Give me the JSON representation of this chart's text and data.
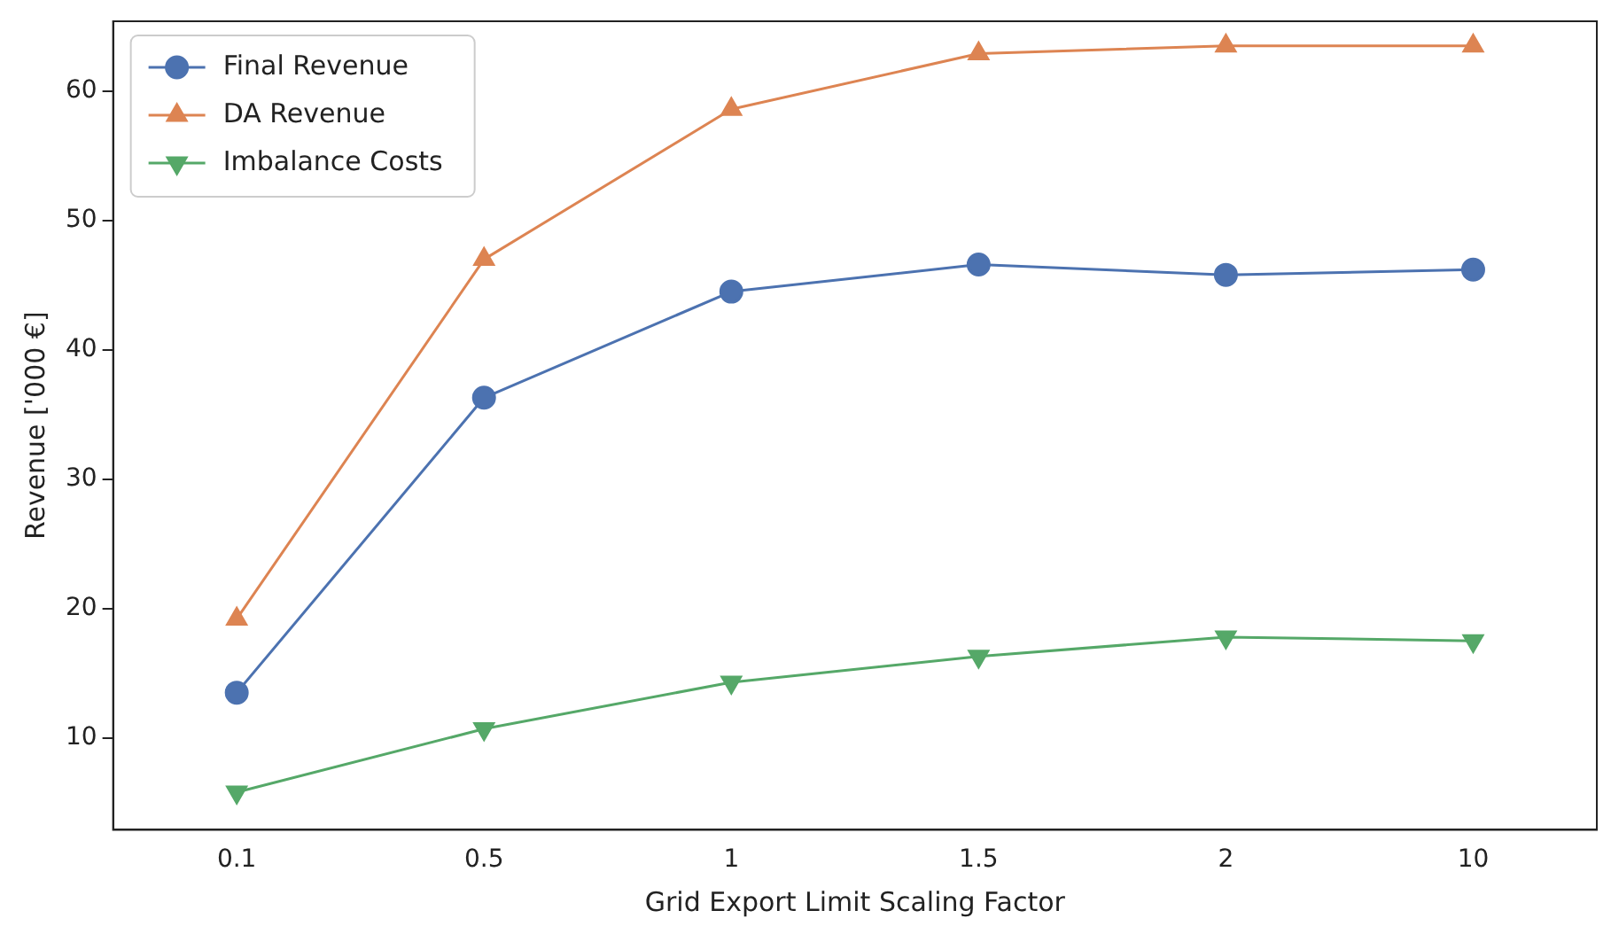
{
  "chart_data": {
    "type": "line",
    "xlabel": "Grid Export Limit Scaling Factor",
    "ylabel": "Revenue ['000 €]",
    "categories": [
      "0.1",
      "0.5",
      "1",
      "1.5",
      "2",
      "10"
    ],
    "series": [
      {
        "name": "Final Revenue",
        "color": "#4c72b0",
        "marker": "circle",
        "values": [
          13.5,
          36.3,
          44.5,
          46.6,
          45.8,
          46.2
        ]
      },
      {
        "name": "DA Revenue",
        "color": "#dd8452",
        "marker": "triangle",
        "values": [
          19.2,
          47.0,
          58.6,
          62.9,
          63.5,
          63.5
        ]
      },
      {
        "name": "Imbalance Costs",
        "color": "#55a868",
        "marker": "triangle_down",
        "values": [
          5.8,
          10.7,
          14.3,
          16.3,
          17.8,
          17.5
        ]
      }
    ],
    "ylim": [
      2.9,
      65.4
    ],
    "yticks": [
      10,
      20,
      30,
      40,
      50,
      60
    ],
    "grid": false,
    "legend": "top left",
    "line_style": "solid"
  }
}
